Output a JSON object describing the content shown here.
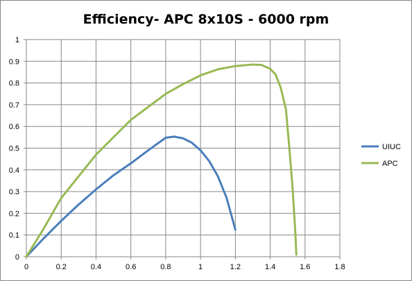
{
  "chart_data": {
    "type": "line",
    "title": "Efficiency- APC 8x10S - 6000 rpm",
    "xlabel": "",
    "ylabel": "",
    "xlim": [
      0,
      1.8
    ],
    "ylim": [
      0,
      1
    ],
    "x_ticks": [
      "0",
      "0.2",
      "0.4",
      "0.6",
      "0.8",
      "1",
      "1.2",
      "1.4",
      "1.6",
      "1.8"
    ],
    "y_ticks": [
      "0",
      "0.1",
      "0.2",
      "0.3",
      "0.4",
      "0.5",
      "0.6",
      "0.7",
      "0.8",
      "0.9",
      "1"
    ],
    "grid": true,
    "legend_position": "right",
    "series": [
      {
        "name": "UIUC",
        "color": "#4a7ebb",
        "points": [
          [
            0,
            0
          ],
          [
            0.1,
            0.085
          ],
          [
            0.2,
            0.165
          ],
          [
            0.3,
            0.24
          ],
          [
            0.4,
            0.31
          ],
          [
            0.5,
            0.375
          ],
          [
            0.6,
            0.43
          ],
          [
            0.7,
            0.49
          ],
          [
            0.8,
            0.548
          ],
          [
            0.85,
            0.553
          ],
          [
            0.9,
            0.545
          ],
          [
            0.95,
            0.525
          ],
          [
            1.0,
            0.49
          ],
          [
            1.05,
            0.44
          ],
          [
            1.1,
            0.37
          ],
          [
            1.15,
            0.27
          ],
          [
            1.2,
            0.125
          ]
        ]
      },
      {
        "name": "APC",
        "color": "#98b954",
        "points": [
          [
            0,
            0
          ],
          [
            0.1,
            0.13
          ],
          [
            0.2,
            0.27
          ],
          [
            0.3,
            0.37
          ],
          [
            0.4,
            0.47
          ],
          [
            0.5,
            0.55
          ],
          [
            0.6,
            0.63
          ],
          [
            0.7,
            0.69
          ],
          [
            0.8,
            0.75
          ],
          [
            0.9,
            0.795
          ],
          [
            1.0,
            0.835
          ],
          [
            1.1,
            0.863
          ],
          [
            1.2,
            0.878
          ],
          [
            1.3,
            0.885
          ],
          [
            1.35,
            0.883
          ],
          [
            1.4,
            0.865
          ],
          [
            1.43,
            0.84
          ],
          [
            1.46,
            0.78
          ],
          [
            1.49,
            0.68
          ],
          [
            1.51,
            0.5
          ],
          [
            1.53,
            0.3
          ],
          [
            1.545,
            0.1
          ],
          [
            1.55,
            0.01
          ]
        ]
      }
    ]
  }
}
